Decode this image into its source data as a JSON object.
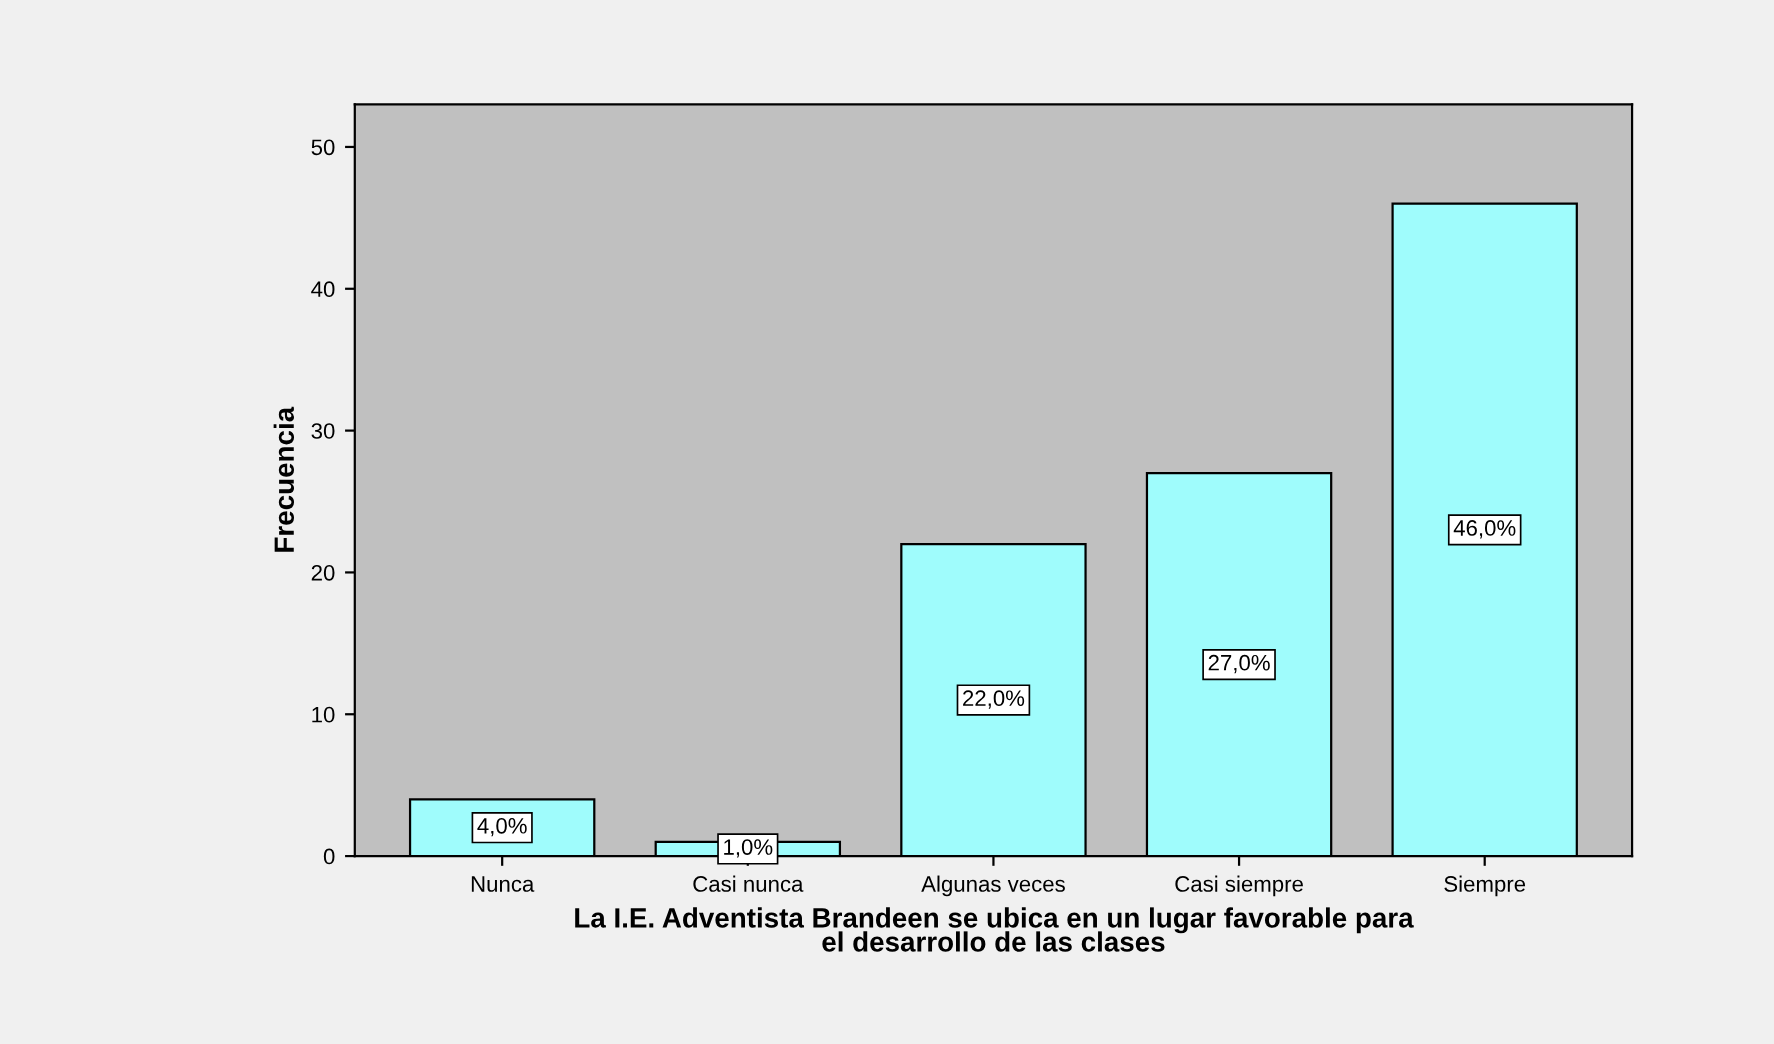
{
  "chart_data": {
    "type": "bar",
    "xlabel": "La I.E. Adventista Brandeen se ubica en un lugar favorable para\nel desarrollo de las clases",
    "ylabel": "Frecuencia",
    "categories": [
      "Nunca",
      "Casi nunca",
      "Algunas veces",
      "Casi siempre",
      "Siempre"
    ],
    "values": [
      4,
      1,
      22,
      27,
      46
    ],
    "color": "#9ffcfc",
    "value_labels": [
      "4,0%",
      "1,0%",
      "22,0%",
      "27,0%",
      "46,0%"
    ],
    "ylim": [
      0,
      53
    ],
    "yticks": [
      0,
      10,
      20,
      30,
      40,
      50
    ],
    "grid": false
  }
}
